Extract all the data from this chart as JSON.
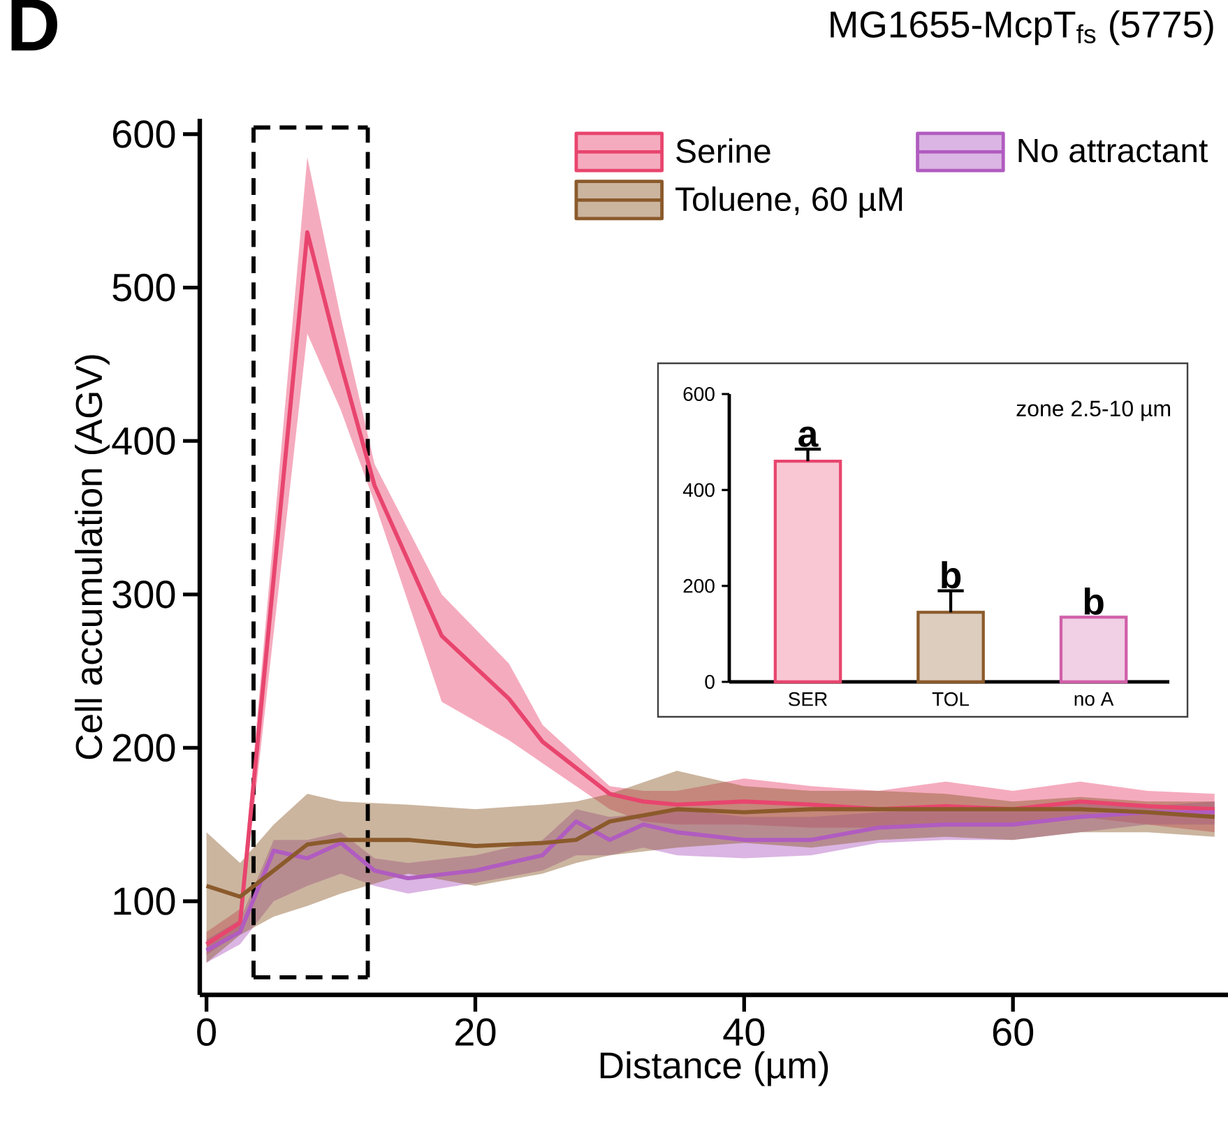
{
  "chart_data": [
    {
      "type": "line",
      "title": "MG1655-McpT$_{fs}$ (5775)",
      "xlabel": "Distance (µm)",
      "ylabel": "Cell accumulation (AGV)",
      "annotations": [
        "D"
      ],
      "xlim": [
        -0.5,
        76
      ],
      "ylim": [
        39,
        610
      ],
      "xticks": [
        0,
        20,
        40,
        60
      ],
      "yticks": [
        100,
        200,
        300,
        400,
        500,
        600
      ],
      "legend": "top right",
      "ref_lines": [
        {
          "axis": "x",
          "value": 3.5,
          "line_style": "dashed"
        },
        {
          "axis": "x",
          "value": 12,
          "line_style": "dashed"
        }
      ],
      "series": [
        {
          "name": "Serine",
          "color": "#e8456e",
          "x": [
            0,
            2.5,
            7.5,
            10,
            12.5,
            17.5,
            22.5,
            25,
            27.5,
            30,
            32.5,
            35,
            40,
            45,
            50,
            55,
            60,
            65,
            70,
            75
          ],
          "values": [
            72,
            86,
            536,
            450,
            371,
            273,
            232,
            204,
            187,
            170,
            165,
            163,
            165,
            163,
            160,
            162,
            160,
            165,
            162,
            160
          ],
          "lower": [
            65,
            80,
            470,
            420,
            360,
            230,
            205,
            190,
            175,
            160,
            152,
            150,
            150,
            148,
            148,
            150,
            150,
            155,
            150,
            145
          ],
          "upper": [
            80,
            95,
            585,
            480,
            385,
            300,
            255,
            215,
            195,
            175,
            172,
            172,
            180,
            175,
            172,
            178,
            172,
            178,
            172,
            170
          ]
        },
        {
          "name": "No attractant",
          "color": "#b05cc0",
          "x": [
            0,
            2.5,
            5,
            7.5,
            10,
            12.5,
            15,
            20,
            25,
            27.5,
            30,
            32.5,
            35,
            40,
            45,
            50,
            55,
            60,
            65,
            70,
            75
          ],
          "values": [
            68,
            80,
            133,
            128,
            138,
            120,
            115,
            120,
            130,
            152,
            140,
            150,
            145,
            140,
            140,
            148,
            150,
            150,
            155,
            158,
            158
          ],
          "lower": [
            60,
            72,
            100,
            110,
            118,
            110,
            105,
            112,
            120,
            130,
            130,
            135,
            130,
            128,
            130,
            138,
            140,
            140,
            145,
            150,
            150
          ],
          "upper": [
            75,
            88,
            140,
            140,
            145,
            128,
            125,
            130,
            140,
            160,
            155,
            157,
            160,
            155,
            155,
            158,
            160,
            160,
            165,
            162,
            165
          ]
        },
        {
          "name": "Toluene, 60 µM",
          "color": "#8b5a2b",
          "x": [
            0,
            2.5,
            5,
            7.5,
            10,
            15,
            20,
            25,
            27.5,
            30,
            35,
            40,
            45,
            50,
            55,
            60,
            65,
            70,
            75
          ],
          "values": [
            110,
            103,
            120,
            137,
            140,
            140,
            136,
            138,
            140,
            152,
            160,
            158,
            160,
            160,
            160,
            160,
            160,
            158,
            155
          ],
          "lower": [
            60,
            78,
            90,
            97,
            105,
            118,
            110,
            118,
            125,
            130,
            135,
            138,
            135,
            140,
            142,
            140,
            145,
            145,
            142
          ],
          "upper": [
            145,
            125,
            150,
            170,
            165,
            163,
            160,
            163,
            165,
            170,
            185,
            175,
            172,
            172,
            170,
            165,
            168,
            165,
            165
          ]
        }
      ]
    },
    {
      "type": "bar",
      "categories": [
        "SER",
        "TOL",
        "no A"
      ],
      "values": [
        460,
        145,
        135
      ],
      "errors": [
        25,
        45,
        null
      ],
      "colors": [
        "#e8456e",
        "#8b5a2b",
        "#d060a8"
      ],
      "ylim": [
        0,
        600
      ],
      "yticks": [
        0,
        200,
        400,
        600
      ],
      "annotations": [
        {
          "text": "a",
          "x": "SER",
          "y": 485
        },
        {
          "text": "b",
          "x": "TOL",
          "y": 190
        },
        {
          "text": "b",
          "x": "no A",
          "y": 135
        },
        "zone 2.5-10 µm"
      ]
    }
  ]
}
